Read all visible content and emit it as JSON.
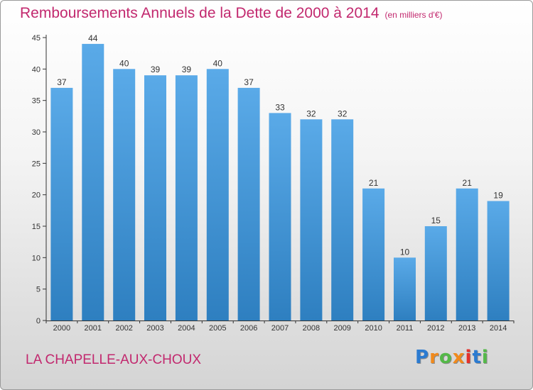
{
  "chart_data": {
    "type": "bar",
    "title": "Remboursements Annuels de la Dette de 2000 à 2014",
    "unit": "(en milliers d'€)",
    "categories": [
      "2000",
      "2001",
      "2002",
      "2003",
      "2004",
      "2005",
      "2006",
      "2007",
      "2008",
      "2009",
      "2010",
      "2011",
      "2012",
      "2013",
      "2014"
    ],
    "values": [
      37,
      44,
      40,
      39,
      39,
      40,
      37,
      33,
      32,
      32,
      21,
      10,
      15,
      21,
      19
    ],
    "ylim": [
      0,
      45
    ],
    "yticks": [
      "0",
      "5",
      "10",
      "15",
      "20",
      "25",
      "30",
      "35",
      "40",
      "45"
    ],
    "grid": false,
    "bar_color": "#5aaae8",
    "bar_color_dark": "#2e7fc0"
  },
  "footer": {
    "commune": "LA CHAPELLE-AUX-CHOUX",
    "logo_letters": [
      {
        "char": "P",
        "color": "#2b7bd1"
      },
      {
        "char": "r",
        "color": "#f18a1c"
      },
      {
        "char": "o",
        "color": "#54b948"
      },
      {
        "char": "x",
        "color": "#f18a1c"
      },
      {
        "char": "i",
        "color": "#e5312c"
      },
      {
        "char": "t",
        "color": "#2b7bd1"
      },
      {
        "char": "i",
        "color": "#54b948"
      }
    ]
  }
}
